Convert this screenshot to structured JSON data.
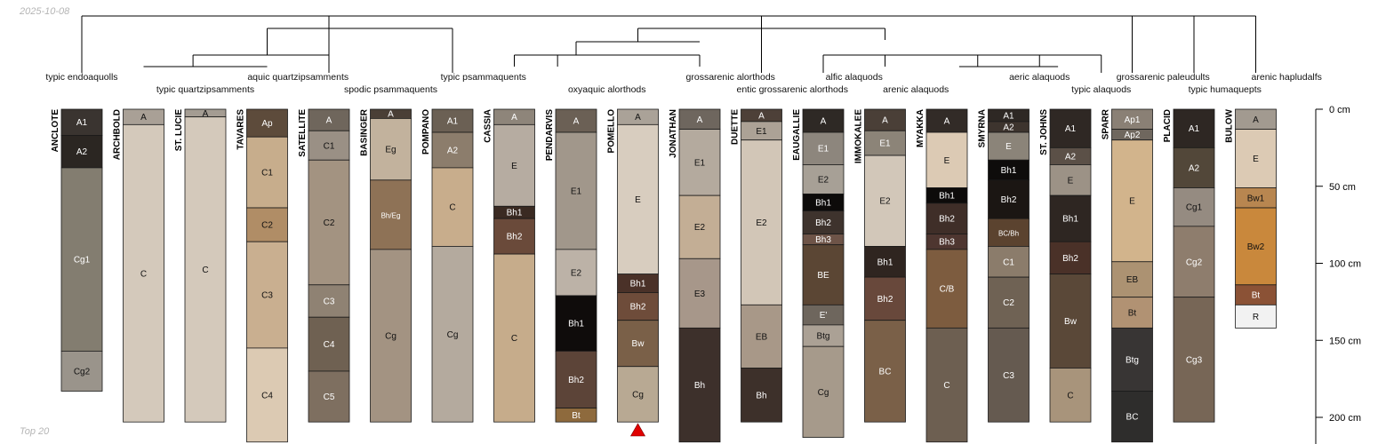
{
  "meta": {
    "date": "2025-10-08",
    "footer": "Top 20"
  },
  "taxa": [
    {
      "label": "typic endoaquolls",
      "row": 0,
      "anchor": 0
    },
    {
      "label": "typic quartzipsamments",
      "row": 1,
      "anchor": 2
    },
    {
      "label": "aquic quartzipsamments",
      "row": 0,
      "anchor": 3.5
    },
    {
      "label": "spodic psammaquents",
      "row": 1,
      "anchor": 5
    },
    {
      "label": "typic psammaquents",
      "row": 0,
      "anchor": 6.5
    },
    {
      "label": "oxyaquic alorthods",
      "row": 1,
      "anchor": 8.5
    },
    {
      "label": "grossarenic alorthods",
      "row": 0,
      "anchor": 10.5
    },
    {
      "label": "entic grossarenic alorthods",
      "row": 1,
      "anchor": 11.5
    },
    {
      "label": "alfic alaquods",
      "row": 0,
      "anchor": 12.5
    },
    {
      "label": "arenic alaquods",
      "row": 1,
      "anchor": 13.5
    },
    {
      "label": "aeric alaquods",
      "row": 0,
      "anchor": 15.5
    },
    {
      "label": "typic alaquods",
      "row": 1,
      "anchor": 16.5
    },
    {
      "label": "grossarenic paleudults",
      "row": 0,
      "anchor": 17.5
    },
    {
      "label": "typic humaquepts",
      "row": 1,
      "anchor": 18.5
    },
    {
      "label": "arenic hapludalfs",
      "row": 0,
      "anchor": 19.5
    }
  ],
  "depth_axis": {
    "ticks": [
      {
        "depth": 0,
        "label": "0 cm"
      },
      {
        "depth": 50,
        "label": "50 cm"
      },
      {
        "depth": 100,
        "label": "100 cm"
      },
      {
        "depth": 150,
        "label": "150 cm"
      },
      {
        "depth": 200,
        "label": "200 cm"
      }
    ]
  },
  "profiles": [
    {
      "name": "ANCLOTE",
      "horizons": [
        {
          "name": "A1",
          "top": 0,
          "bottom": 17,
          "color": "#3a3430"
        },
        {
          "name": "A2",
          "top": 17,
          "bottom": 38,
          "color": "#2b2622"
        },
        {
          "name": "Cg1",
          "top": 38,
          "bottom": 157,
          "color": "#837d70"
        },
        {
          "name": "Cg2",
          "top": 157,
          "bottom": 183,
          "color": "#9a948b"
        }
      ]
    },
    {
      "name": "ARCHBOLD",
      "horizons": [
        {
          "name": "A",
          "top": 0,
          "bottom": 10,
          "color": "#a9a096"
        },
        {
          "name": "C",
          "top": 10,
          "bottom": 203,
          "color": "#d4c9bb"
        }
      ]
    },
    {
      "name": "ST. LUCIE",
      "horizons": [
        {
          "name": "A",
          "top": 0,
          "bottom": 5,
          "color": "#a49c92"
        },
        {
          "name": "C",
          "top": 5,
          "bottom": 203,
          "color": "#d4c9bb"
        }
      ]
    },
    {
      "name": "TAVARES",
      "horizons": [
        {
          "name": "Ap",
          "top": 0,
          "bottom": 18,
          "color": "#5d4b3b"
        },
        {
          "name": "C1",
          "top": 18,
          "bottom": 64,
          "color": "#c7ad8c"
        },
        {
          "name": "C2",
          "top": 64,
          "bottom": 86,
          "color": "#b08d66"
        },
        {
          "name": "C3",
          "top": 86,
          "bottom": 155,
          "color": "#c9af90"
        },
        {
          "name": "C4",
          "top": 155,
          "bottom": 216,
          "color": "#dccab3"
        }
      ]
    },
    {
      "name": "SATELLITE",
      "horizons": [
        {
          "name": "A",
          "top": 0,
          "bottom": 14,
          "color": "#6f665c"
        },
        {
          "name": "C1",
          "top": 14,
          "bottom": 33,
          "color": "#9a9085"
        },
        {
          "name": "C2",
          "top": 33,
          "bottom": 114,
          "color": "#a39381"
        },
        {
          "name": "C3",
          "top": 114,
          "bottom": 135,
          "color": "#8f8273"
        },
        {
          "name": "C4",
          "top": 135,
          "bottom": 170,
          "color": "#6f6152"
        },
        {
          "name": "C5",
          "top": 170,
          "bottom": 203,
          "color": "#7e6f60"
        }
      ]
    },
    {
      "name": "BASINGER",
      "horizons": [
        {
          "name": "A",
          "top": 0,
          "bottom": 6,
          "color": "#4a3f36"
        },
        {
          "name": "Eg",
          "top": 6,
          "bottom": 46,
          "color": "#c2b29d"
        },
        {
          "name": "Bh/Eg",
          "top": 46,
          "bottom": 91,
          "color": "#8e7256"
        },
        {
          "name": "Cg",
          "top": 91,
          "bottom": 203,
          "color": "#a39382"
        }
      ]
    },
    {
      "name": "POMPANO",
      "horizons": [
        {
          "name": "A1",
          "top": 0,
          "bottom": 15,
          "color": "#6b6054"
        },
        {
          "name": "A2",
          "top": 15,
          "bottom": 38,
          "color": "#8c7d6c"
        },
        {
          "name": "C",
          "top": 38,
          "bottom": 89,
          "color": "#c8ad8c"
        },
        {
          "name": "Cg",
          "top": 89,
          "bottom": 203,
          "color": "#b4aa9e"
        }
      ]
    },
    {
      "name": "CASSIA",
      "horizons": [
        {
          "name": "A",
          "top": 0,
          "bottom": 10,
          "color": "#8e857a"
        },
        {
          "name": "E",
          "top": 10,
          "bottom": 63,
          "color": "#b6aca1"
        },
        {
          "name": "Bh1",
          "top": 63,
          "bottom": 71,
          "color": "#3a2a22"
        },
        {
          "name": "Bh2",
          "top": 71,
          "bottom": 94,
          "color": "#6a4a3a"
        },
        {
          "name": "C",
          "top": 94,
          "bottom": 203,
          "color": "#c6ac8b"
        }
      ]
    },
    {
      "name": "PENDARVIS",
      "horizons": [
        {
          "name": "A",
          "top": 0,
          "bottom": 15,
          "color": "#6b6055"
        },
        {
          "name": "E1",
          "top": 15,
          "bottom": 91,
          "color": "#a1978b"
        },
        {
          "name": "E2",
          "top": 91,
          "bottom": 121,
          "color": "#bcb2a7"
        },
        {
          "name": "Bh1",
          "top": 121,
          "bottom": 157,
          "color": "#0f0c0b"
        },
        {
          "name": "Bh2",
          "top": 157,
          "bottom": 194,
          "color": "#5c4438"
        },
        {
          "name": "Bt",
          "top": 194,
          "bottom": 203,
          "color": "#8e6a3d"
        }
      ]
    },
    {
      "name": "POMELLO",
      "horizons": [
        {
          "name": "A",
          "top": 0,
          "bottom": 10,
          "color": "#aaa298"
        },
        {
          "name": "E",
          "top": 10,
          "bottom": 107,
          "color": "#d8cdbf"
        },
        {
          "name": "Bh1",
          "top": 107,
          "bottom": 119,
          "color": "#4a3128"
        },
        {
          "name": "Bh2",
          "top": 119,
          "bottom": 137,
          "color": "#6e4c3a"
        },
        {
          "name": "Bw",
          "top": 137,
          "bottom": 167,
          "color": "#7a6048"
        },
        {
          "name": "Cg",
          "top": 167,
          "bottom": 203,
          "color": "#b8a993"
        }
      ]
    },
    {
      "name": "JONATHAN",
      "horizons": [
        {
          "name": "A",
          "top": 0,
          "bottom": 13,
          "color": "#6e665e"
        },
        {
          "name": "E1",
          "top": 13,
          "bottom": 56,
          "color": "#b4aa9e"
        },
        {
          "name": "E2",
          "top": 56,
          "bottom": 97,
          "color": "#c3ae95"
        },
        {
          "name": "E3",
          "top": 97,
          "bottom": 142,
          "color": "#a7978a"
        },
        {
          "name": "Bh",
          "top": 142,
          "bottom": 216,
          "color": "#3d302b"
        }
      ]
    },
    {
      "name": "DUETTE",
      "horizons": [
        {
          "name": "A",
          "top": 0,
          "bottom": 8,
          "color": "#4d4038"
        },
        {
          "name": "E1",
          "top": 8,
          "bottom": 20,
          "color": "#aca296"
        },
        {
          "name": "E2",
          "top": 20,
          "bottom": 127,
          "color": "#d2c6b7"
        },
        {
          "name": "EB",
          "top": 127,
          "bottom": 168,
          "color": "#a89888"
        },
        {
          "name": "Bh",
          "top": 168,
          "bottom": 203,
          "color": "#3d302a"
        }
      ]
    },
    {
      "name": "EAUGALLIE",
      "horizons": [
        {
          "name": "A",
          "top": 0,
          "bottom": 15,
          "color": "#2e2925"
        },
        {
          "name": "E1",
          "top": 15,
          "bottom": 36,
          "color": "#8d867d"
        },
        {
          "name": "E2",
          "top": 36,
          "bottom": 55,
          "color": "#a7a096"
        },
        {
          "name": "Bh1",
          "top": 55,
          "bottom": 66,
          "color": "#0d0b0a"
        },
        {
          "name": "Bh2",
          "top": 66,
          "bottom": 81,
          "color": "#3e332d"
        },
        {
          "name": "Bh3",
          "top": 81,
          "bottom": 88,
          "color": "#6e5448"
        },
        {
          "name": "BE",
          "top": 88,
          "bottom": 127,
          "color": "#5b4634"
        },
        {
          "name": "E'",
          "top": 127,
          "bottom": 140,
          "color": "#6e665d"
        },
        {
          "name": "Btg",
          "top": 140,
          "bottom": 154,
          "color": "#aba195"
        },
        {
          "name": "Cg",
          "top": 154,
          "bottom": 213,
          "color": "#a69a8b"
        }
      ]
    },
    {
      "name": "IMMOKALEE",
      "horizons": [
        {
          "name": "A",
          "top": 0,
          "bottom": 14,
          "color": "#4a3f37"
        },
        {
          "name": "E1",
          "top": 14,
          "bottom": 30,
          "color": "#8c8478"
        },
        {
          "name": "E2",
          "top": 30,
          "bottom": 89,
          "color": "#d2c7b9"
        },
        {
          "name": "Bh1",
          "top": 89,
          "bottom": 109,
          "color": "#2f2520"
        },
        {
          "name": "Bh2",
          "top": 109,
          "bottom": 137,
          "color": "#68483b"
        },
        {
          "name": "BC",
          "top": 137,
          "bottom": 203,
          "color": "#7a6048"
        }
      ]
    },
    {
      "name": "MYAKKA",
      "horizons": [
        {
          "name": "A",
          "top": 0,
          "bottom": 15,
          "color": "#322b27"
        },
        {
          "name": "E",
          "top": 15,
          "bottom": 51,
          "color": "#dccab4"
        },
        {
          "name": "Bh1",
          "top": 51,
          "bottom": 61,
          "color": "#0d0b0a"
        },
        {
          "name": "Bh2",
          "top": 61,
          "bottom": 81,
          "color": "#3f2e28"
        },
        {
          "name": "Bh3",
          "top": 81,
          "bottom": 91,
          "color": "#4e3630"
        },
        {
          "name": "C/B",
          "top": 91,
          "bottom": 142,
          "color": "#7d5c3f"
        },
        {
          "name": "C",
          "top": 142,
          "bottom": 216,
          "color": "#6d5f51"
        }
      ]
    },
    {
      "name": "SMYRNA",
      "horizons": [
        {
          "name": "A1",
          "top": 0,
          "bottom": 8,
          "color": "#2e2824"
        },
        {
          "name": "A2",
          "top": 8,
          "bottom": 15,
          "color": "#3d342e"
        },
        {
          "name": "E",
          "top": 15,
          "bottom": 33,
          "color": "#8b8479"
        },
        {
          "name": "Bh1",
          "top": 33,
          "bottom": 46,
          "color": "#0e0c0b"
        },
        {
          "name": "Bh2",
          "top": 46,
          "bottom": 71,
          "color": "#1b1613"
        },
        {
          "name": "BC/Bh",
          "top": 71,
          "bottom": 89,
          "color": "#5b432f"
        },
        {
          "name": "C1",
          "top": 89,
          "bottom": 109,
          "color": "#8b7c6b"
        },
        {
          "name": "C2",
          "top": 109,
          "bottom": 142,
          "color": "#6f6254"
        },
        {
          "name": "C3",
          "top": 142,
          "bottom": 203,
          "color": "#655a50"
        }
      ]
    },
    {
      "name": "ST. JOHNS",
      "horizons": [
        {
          "name": "A1",
          "top": 0,
          "bottom": 25,
          "color": "#2f2824"
        },
        {
          "name": "A2",
          "top": 25,
          "bottom": 36,
          "color": "#5b5047"
        },
        {
          "name": "E",
          "top": 36,
          "bottom": 56,
          "color": "#9c9286"
        },
        {
          "name": "Bh1",
          "top": 56,
          "bottom": 86,
          "color": "#2e2622"
        },
        {
          "name": "Bh2",
          "top": 86,
          "bottom": 107,
          "color": "#4a3128"
        },
        {
          "name": "Bw",
          "top": 107,
          "bottom": 168,
          "color": "#5a4838"
        },
        {
          "name": "C",
          "top": 168,
          "bottom": 203,
          "color": "#a8947b"
        }
      ]
    },
    {
      "name": "SPARR",
      "horizons": [
        {
          "name": "Ap1",
          "top": 0,
          "bottom": 13,
          "color": "#8a8075"
        },
        {
          "name": "Ap2",
          "top": 13,
          "bottom": 20,
          "color": "#6f675e"
        },
        {
          "name": "E",
          "top": 20,
          "bottom": 99,
          "color": "#d2b48c"
        },
        {
          "name": "EB",
          "top": 99,
          "bottom": 122,
          "color": "#ac9272"
        },
        {
          "name": "Bt",
          "top": 122,
          "bottom": 142,
          "color": "#b19273"
        },
        {
          "name": "Btg",
          "top": 142,
          "bottom": 183,
          "color": "#383534"
        },
        {
          "name": "BC",
          "top": 183,
          "bottom": 216,
          "color": "#2e2d2c"
        }
      ]
    },
    {
      "name": "PLACID",
      "horizons": [
        {
          "name": "A1",
          "top": 0,
          "bottom": 25,
          "color": "#2e2723"
        },
        {
          "name": "A2",
          "top": 25,
          "bottom": 51,
          "color": "#524739"
        },
        {
          "name": "Cg1",
          "top": 51,
          "bottom": 76,
          "color": "#958b81"
        },
        {
          "name": "Cg2",
          "top": 76,
          "bottom": 122,
          "color": "#8e7d6d"
        },
        {
          "name": "Cg3",
          "top": 122,
          "bottom": 203,
          "color": "#776656"
        }
      ]
    },
    {
      "name": "BULOW",
      "horizons": [
        {
          "name": "A",
          "top": 0,
          "bottom": 13,
          "color": "#a29a90"
        },
        {
          "name": "E",
          "top": 13,
          "bottom": 51,
          "color": "#dccab4"
        },
        {
          "name": "Bw1",
          "top": 51,
          "bottom": 64,
          "color": "#b88650"
        },
        {
          "name": "Bw2",
          "top": 64,
          "bottom": 114,
          "color": "#c9883c"
        },
        {
          "name": "Bt",
          "top": 114,
          "bottom": 127,
          "color": "#8b5236"
        },
        {
          "name": "R",
          "top": 127,
          "bottom": 142,
          "color": "#f2f2f2"
        }
      ]
    }
  ],
  "truncation_marker": {
    "profile": "POMELLO"
  }
}
